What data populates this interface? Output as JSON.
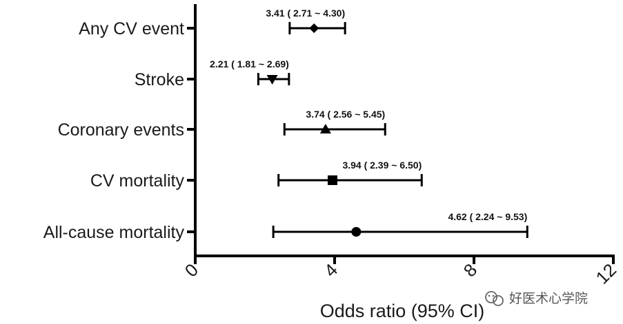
{
  "chart_data": {
    "type": "forest",
    "title": "",
    "xlabel": "Odds ratio (95% CI)",
    "ylabel": "",
    "xlim": [
      0,
      12
    ],
    "xticks": [
      0,
      4,
      8,
      12
    ],
    "grid": false,
    "rows": [
      {
        "label": "Any CV event",
        "or": 3.41,
        "lo": 2.71,
        "hi": 4.3,
        "marker": "diamond",
        "text": "3.41 ( 2.71 ~ 4.30)"
      },
      {
        "label": "Stroke",
        "or": 2.21,
        "lo": 1.81,
        "hi": 2.69,
        "marker": "triangle-down",
        "text": "2.21 ( 1.81 ~ 2.69)"
      },
      {
        "label": "Coronary events",
        "or": 3.74,
        "lo": 2.56,
        "hi": 5.45,
        "marker": "triangle-up",
        "text": "3.74 ( 2.56 ~ 5.45)"
      },
      {
        "label": "CV mortality",
        "or": 3.94,
        "lo": 2.39,
        "hi": 6.5,
        "marker": "square",
        "text": "3.94 ( 2.39 ~ 6.50)"
      },
      {
        "label": "All-cause mortality",
        "or": 4.62,
        "lo": 2.24,
        "hi": 9.53,
        "marker": "circle",
        "text": "4.62 ( 2.24 ~ 9.53)"
      }
    ]
  },
  "watermark": {
    "text": "好医术心学院",
    "icon": "wechat-icon"
  },
  "colors": {
    "ink": "#000000"
  }
}
